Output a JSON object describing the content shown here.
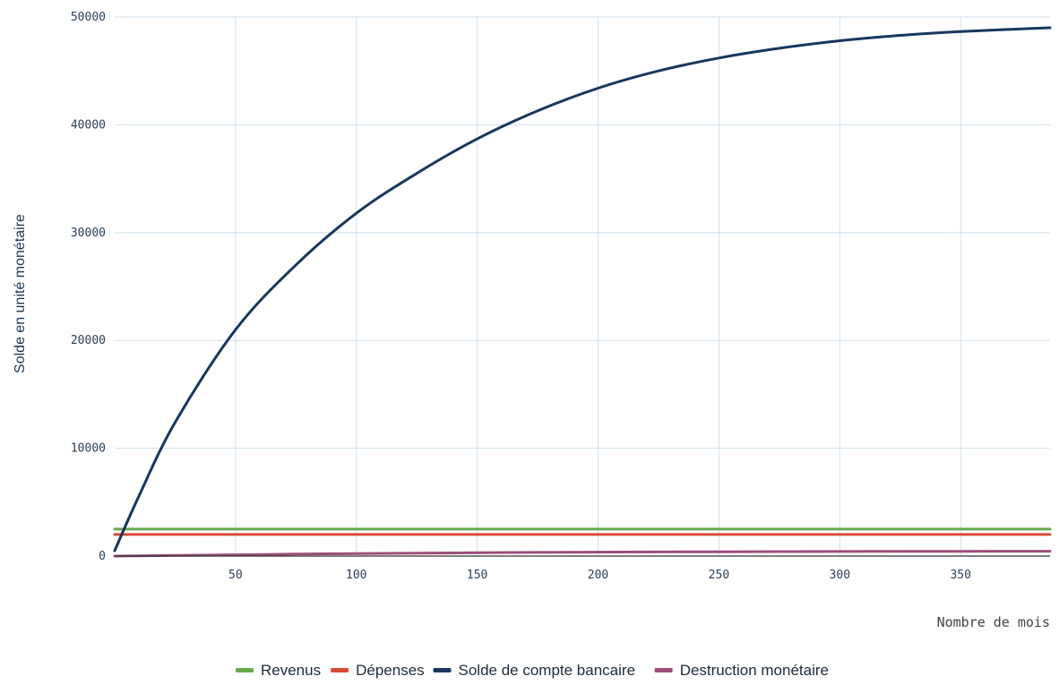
{
  "chart_data": {
    "type": "line",
    "title": "",
    "xlabel": "Nombre de mois",
    "ylabel": "Solde en unité monétaire",
    "xlim": [
      0,
      387
    ],
    "ylim": [
      0,
      50000
    ],
    "x_ticks": [
      "50",
      "100",
      "150",
      "200",
      "250",
      "300",
      "350"
    ],
    "y_ticks": [
      "0",
      "10000",
      "20000",
      "30000",
      "40000",
      "50000"
    ],
    "grid": true,
    "legend_position": "bottom",
    "x": [
      0,
      10,
      25,
      50,
      75,
      100,
      125,
      150,
      175,
      200,
      225,
      250,
      275,
      300,
      325,
      350,
      387
    ],
    "series": [
      {
        "name": "Revenus",
        "color": "#6aa84f",
        "values": [
          2500,
          2500,
          2500,
          2500,
          2500,
          2500,
          2500,
          2500,
          2500,
          2500,
          2500,
          2500,
          2500,
          2500,
          2500,
          2500,
          2500
        ]
      },
      {
        "name": "Dépenses",
        "color": "#d94a38",
        "values": [
          2000,
          2000,
          2000,
          2000,
          2000,
          2000,
          2000,
          2000,
          2000,
          2000,
          2000,
          2000,
          2000,
          2000,
          2000,
          2000,
          2000
        ]
      },
      {
        "name": "Solde de compte bancaire",
        "color": "#17375e",
        "values": [
          500,
          5550,
          12400,
          21000,
          27000,
          31800,
          35500,
          38700,
          41300,
          43400,
          45000,
          46200,
          47100,
          47800,
          48300,
          48650,
          49000
        ]
      },
      {
        "name": "Destruction monétaire",
        "color": "#9b4f7a",
        "values": [
          0,
          20,
          60,
          120,
          180,
          230,
          275,
          310,
          340,
          365,
          385,
          400,
          415,
          425,
          435,
          440,
          450
        ]
      }
    ]
  }
}
